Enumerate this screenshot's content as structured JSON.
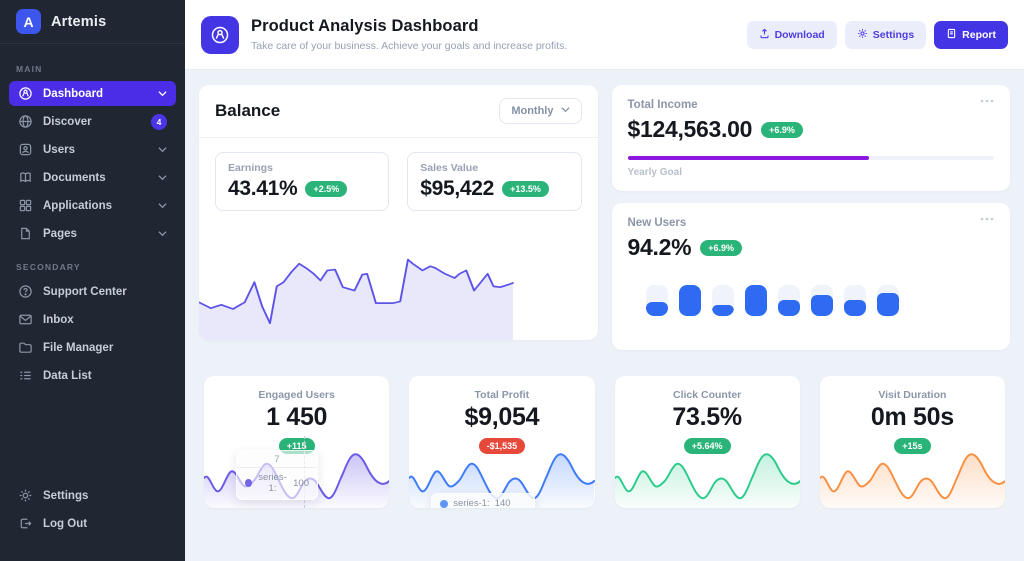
{
  "app": {
    "name": "Artemis"
  },
  "sidebar": {
    "section_main_label": "MAIN",
    "section_secondary_label": "SECONDARY",
    "main_items": [
      {
        "label": "Dashboard",
        "icon": "gauge-icon",
        "active": true
      },
      {
        "label": "Discover",
        "icon": "globe-icon",
        "badge": "4"
      },
      {
        "label": "Users",
        "icon": "user-icon"
      },
      {
        "label": "Documents",
        "icon": "book-icon"
      },
      {
        "label": "Applications",
        "icon": "grid-icon"
      },
      {
        "label": "Pages",
        "icon": "page-icon"
      }
    ],
    "secondary_items": [
      {
        "label": "Support Center",
        "icon": "help-icon"
      },
      {
        "label": "Inbox",
        "icon": "inbox-icon"
      },
      {
        "label": "File Manager",
        "icon": "folder-icon"
      },
      {
        "label": "Data List",
        "icon": "list-icon"
      }
    ],
    "footer_items": [
      {
        "label": "Settings",
        "icon": "gear-icon"
      },
      {
        "label": "Log Out",
        "icon": "logout-icon"
      }
    ]
  },
  "header": {
    "title": "Product Analysis Dashboard",
    "subtitle": "Take care of your business. Achieve your goals and increase profits.",
    "download_label": "Download",
    "settings_label": "Settings",
    "report_label": "Report"
  },
  "balance": {
    "title": "Balance",
    "period_selected": "Monthly",
    "stats": [
      {
        "label": "Earnings",
        "value": "43.41%",
        "delta": "+2.5%"
      },
      {
        "label": "Sales Value",
        "value": "$95,422",
        "delta": "+13.5%"
      }
    ]
  },
  "total_income": {
    "label": "Total Income",
    "value": "$124,563.00",
    "delta": "+6.9%",
    "goal_label": "Yearly Goal",
    "progress_pct": 66
  },
  "new_users": {
    "label": "New Users",
    "value": "94.2%",
    "delta": "+6.9%",
    "bars_pct": [
      45,
      100,
      35,
      100,
      52,
      68,
      52,
      74
    ]
  },
  "mini_cards": [
    {
      "label": "Engaged Users",
      "value": "1 450",
      "delta": "+115",
      "tooltip_header": "7",
      "tooltip_series": "series-1:",
      "tooltip_value": "100"
    },
    {
      "label": "Total Profit",
      "value": "$9,054",
      "delta": "-$1,535",
      "tooltip_series": "series-1:",
      "tooltip_value": "140"
    },
    {
      "label": "Click Counter",
      "value": "73.5%",
      "delta": "+5.64%"
    },
    {
      "label": "Visit Duration",
      "value": "0m 50s",
      "delta": "+15s"
    }
  ],
  "chart_data": [
    {
      "type": "area",
      "title": "Balance monthly trend",
      "legend_position": "none",
      "grid": false,
      "series": [
        {
          "name": "balance",
          "values": [
            32,
            27,
            30,
            26,
            32,
            49,
            29,
            14,
            45,
            49,
            57,
            64,
            61,
            56,
            50,
            59,
            59,
            44,
            41,
            55,
            56,
            31,
            31,
            32,
            68,
            64,
            59,
            62,
            61,
            56,
            52,
            56,
            59,
            41,
            49,
            56,
            45,
            44,
            46,
            48
          ]
        }
      ]
    },
    {
      "type": "bar",
      "title": "New Users activity",
      "categories": [
        "1",
        "2",
        "3",
        "4",
        "5",
        "6",
        "7",
        "8"
      ],
      "values": [
        45,
        100,
        35,
        100,
        52,
        68,
        52,
        74
      ],
      "ylim": [
        0,
        100
      ]
    },
    {
      "type": "area",
      "title": "Engaged Users sparkline",
      "highlighted_point": {
        "x": "7",
        "series": "series-1",
        "value": 100
      }
    },
    {
      "type": "area",
      "title": "Total Profit sparkline",
      "highlighted_point": {
        "series": "series-1",
        "value": 140
      }
    },
    {
      "type": "area",
      "title": "Click Counter sparkline"
    },
    {
      "type": "area",
      "title": "Visit Duration sparkline"
    }
  ],
  "colors": {
    "sidebar_bg": "#202733",
    "accent_purple": "#4b2de8",
    "header_accent": "#4334e4",
    "progress_purple": "#8b17e0",
    "bar_blue": "#2e6bf2",
    "badge_green": "#2bb479",
    "badge_red": "#e6493a",
    "spark_purple": "#6a5ae8",
    "spark_blue": "#3d7bf7",
    "spark_green": "#2dcb8c",
    "spark_orange": "#f79043"
  }
}
